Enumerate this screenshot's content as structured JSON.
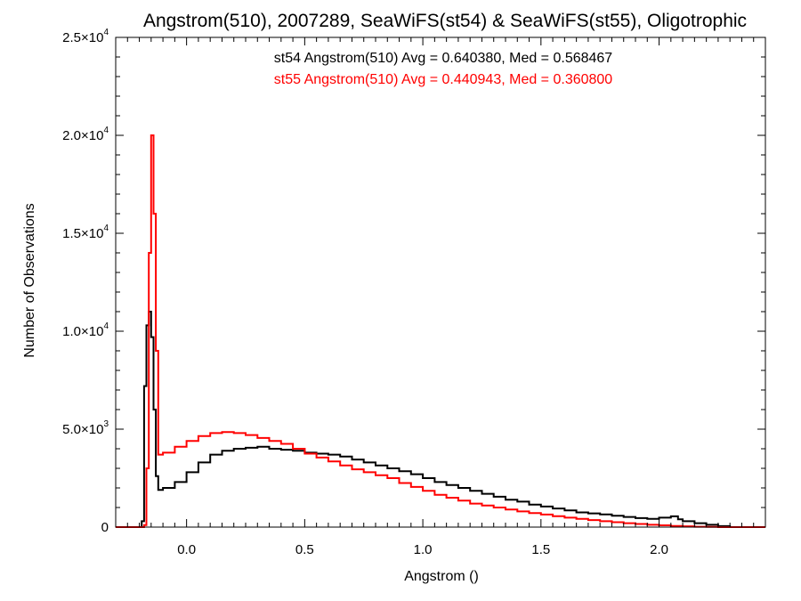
{
  "chart_data": {
    "type": "line",
    "title": "Angstrom(510), 2007289, SeaWiFS(st54) & SeaWiFS(st55), Oligotrophic",
    "xlabel": "Angstrom ()",
    "ylabel": "Number of Observations",
    "xlim": [
      -0.3,
      2.45
    ],
    "ylim": [
      0,
      25000
    ],
    "x_ticks": [
      {
        "value": 0.0,
        "label": "0.0"
      },
      {
        "value": 0.5,
        "label": "0.5"
      },
      {
        "value": 1.0,
        "label": "1.0"
      },
      {
        "value": 1.5,
        "label": "1.5"
      },
      {
        "value": 2.0,
        "label": "2.0"
      }
    ],
    "y_ticks": [
      {
        "value": 0,
        "mant": "0",
        "exp": ""
      },
      {
        "value": 5000,
        "mant": "5.0×10",
        "exp": "3"
      },
      {
        "value": 10000,
        "mant": "1.0×10",
        "exp": "4"
      },
      {
        "value": 15000,
        "mant": "1.5×10",
        "exp": "4"
      },
      {
        "value": 20000,
        "mant": "2.0×10",
        "exp": "4"
      },
      {
        "value": 25000,
        "mant": "2.5×10",
        "exp": "4"
      }
    ],
    "annotations": [
      {
        "text": "st54 Angstrom(510) Avg = 0.640380, Med = 0.568467",
        "color": "#000000"
      },
      {
        "text": "st55 Angstrom(510) Avg = 0.440943, Med = 0.360800",
        "color": "#ff0000"
      }
    ],
    "series": [
      {
        "color": "#000000",
        "step": true,
        "x": [
          -0.3,
          -0.19,
          -0.18,
          -0.17,
          -0.16,
          -0.15,
          -0.14,
          -0.13,
          -0.12,
          -0.1,
          -0.05,
          0.0,
          0.05,
          0.1,
          0.15,
          0.2,
          0.25,
          0.3,
          0.35,
          0.4,
          0.45,
          0.5,
          0.55,
          0.6,
          0.65,
          0.7,
          0.75,
          0.8,
          0.85,
          0.9,
          0.95,
          1.0,
          1.05,
          1.1,
          1.15,
          1.2,
          1.25,
          1.3,
          1.35,
          1.4,
          1.45,
          1.5,
          1.55,
          1.6,
          1.65,
          1.7,
          1.75,
          1.8,
          1.85,
          1.9,
          1.95,
          2.0,
          2.05,
          2.08,
          2.1,
          2.15,
          2.2,
          2.25,
          2.3,
          2.45
        ],
        "y": [
          0,
          300,
          7200,
          10300,
          11000,
          9700,
          6000,
          2600,
          1900,
          2000,
          2300,
          2800,
          3300,
          3700,
          3900,
          4000,
          4050,
          4100,
          4000,
          3950,
          3900,
          3800,
          3750,
          3700,
          3600,
          3450,
          3300,
          3150,
          3000,
          2850,
          2700,
          2500,
          2300,
          2150,
          2000,
          1850,
          1700,
          1550,
          1400,
          1300,
          1150,
          1050,
          950,
          850,
          750,
          700,
          650,
          580,
          520,
          460,
          420,
          480,
          550,
          400,
          300,
          200,
          120,
          50,
          0,
          0
        ]
      },
      {
        "color": "#ff0000",
        "step": true,
        "x": [
          -0.3,
          -0.18,
          -0.17,
          -0.16,
          -0.15,
          -0.14,
          -0.13,
          -0.12,
          -0.1,
          -0.05,
          0.0,
          0.05,
          0.1,
          0.15,
          0.2,
          0.25,
          0.3,
          0.35,
          0.4,
          0.45,
          0.5,
          0.55,
          0.6,
          0.65,
          0.7,
          0.75,
          0.8,
          0.85,
          0.9,
          0.95,
          1.0,
          1.05,
          1.1,
          1.15,
          1.2,
          1.25,
          1.3,
          1.35,
          1.4,
          1.45,
          1.5,
          1.55,
          1.6,
          1.65,
          1.7,
          1.75,
          1.8,
          1.85,
          1.9,
          1.95,
          2.0,
          2.05,
          2.1,
          2.15,
          2.2,
          2.25,
          2.3,
          2.45
        ],
        "y": [
          0,
          100,
          3000,
          14000,
          20000,
          16000,
          9000,
          3700,
          3800,
          4100,
          4400,
          4650,
          4800,
          4850,
          4800,
          4700,
          4550,
          4400,
          4250,
          4000,
          3750,
          3550,
          3350,
          3150,
          2950,
          2800,
          2650,
          2500,
          2250,
          2050,
          1850,
          1650,
          1500,
          1350,
          1200,
          1100,
          1000,
          900,
          800,
          720,
          640,
          560,
          480,
          420,
          360,
          300,
          250,
          200,
          160,
          120,
          90,
          60,
          40,
          20,
          10,
          0,
          0,
          0
        ]
      }
    ]
  }
}
